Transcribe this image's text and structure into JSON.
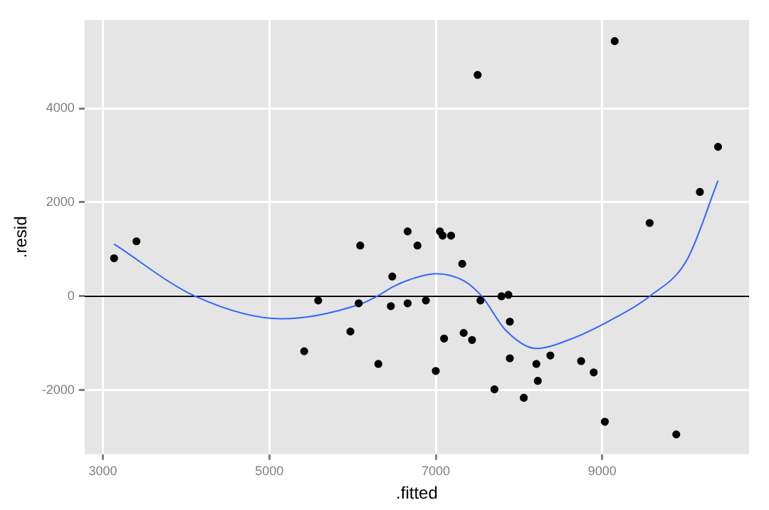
{
  "chart_data": {
    "type": "scatter",
    "xlabel": ".fitted",
    "ylabel": ".resid",
    "xlim": [
      2780,
      10765
    ],
    "ylim": [
      -3360,
      5880
    ],
    "xticks": [
      3000,
      5000,
      7000,
      9000
    ],
    "yticks": [
      -2000,
      0,
      2000,
      4000
    ],
    "grid": true,
    "legend": false,
    "marker": "circle",
    "ref_lines": [
      {
        "axis": "y",
        "value": 0,
        "color": "#000000"
      }
    ],
    "series": [
      {
        "color": "#000000",
        "x": [
          3134,
          3403,
          5419,
          5587,
          5974,
          6092,
          6074,
          6310,
          6460,
          6477,
          6662,
          6662,
          6780,
          6881,
          7050,
          7083,
          7184,
          7000,
          7100,
          7318,
          7335,
          7436,
          7503,
          7537,
          7705,
          7789,
          7873,
          7890,
          7890,
          8058,
          8209,
          8226,
          8377,
          8747,
          8898,
          9032,
          9150,
          9570,
          10174,
          10392,
          9890
        ],
        "values": [
          810,
          1170,
          -1170,
          -90,
          -750,
          1080,
          -150,
          -1440,
          -210,
          420,
          1380,
          -150,
          1080,
          -90,
          1380,
          1290,
          1290,
          -1590,
          -900,
          690,
          -780,
          -930,
          4710,
          -90,
          -1980,
          0,
          30,
          -540,
          -1320,
          -2160,
          -1440,
          -1800,
          -1260,
          -1380,
          -1620,
          -2670,
          5430,
          1560,
          2220,
          3180,
          -2940
        ]
      },
      {
        "type": "line",
        "color": "#3366ff",
        "marker": "none",
        "x": [
          3134,
          4109,
          5150,
          6074,
          6293,
          6494,
          6696,
          7000,
          7335,
          7553,
          7839,
          8209,
          8596,
          9100,
          9570,
          10020,
          10392
        ],
        "values": [
          1110,
          0,
          -480,
          -180,
          0,
          210,
          360,
          480,
          330,
          0,
          -720,
          -1110,
          -930,
          -510,
          0,
          780,
          2460
        ]
      }
    ]
  }
}
